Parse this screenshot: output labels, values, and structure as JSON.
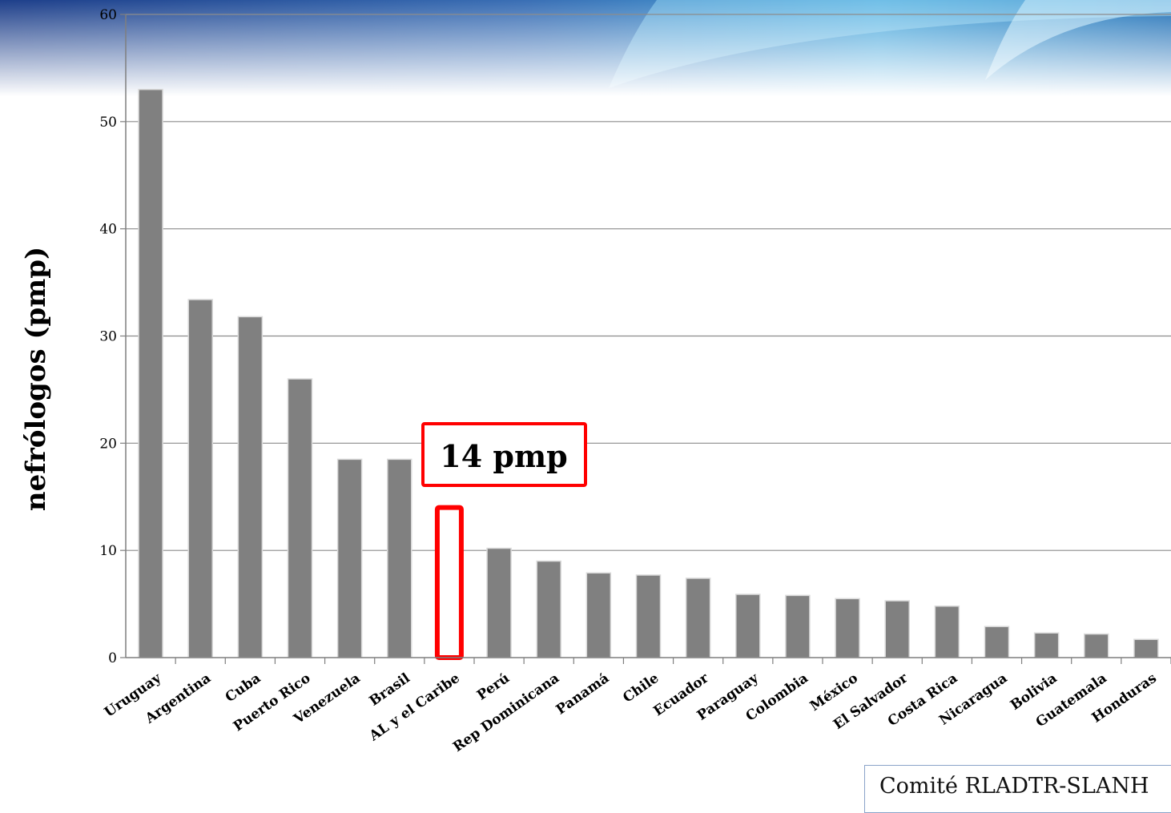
{
  "chart_data": {
    "type": "bar",
    "ylabel": "nefrólogos (pmp)",
    "xlabel": "",
    "ylim": [
      0,
      60
    ],
    "yticks": [
      0,
      10,
      20,
      30,
      40,
      50,
      60
    ],
    "grid": true,
    "categories": [
      "Uruguay",
      "Argentina",
      "Cuba",
      "Puerto Rico",
      "Venezuela",
      "Brasil",
      "AL y el Caribe",
      "Perú",
      "Rep Dominicana",
      "Panamá",
      "Chile",
      "Ecuador",
      "Paraguay",
      "Colombia",
      "México",
      "El Salvador",
      "Costa Rica",
      "Nicaragua",
      "Bolivia",
      "Guatemala",
      "Honduras"
    ],
    "values": [
      53,
      33.4,
      31.8,
      26,
      18.5,
      18.5,
      14,
      10.2,
      9,
      7.9,
      7.7,
      7.4,
      5.9,
      5.8,
      5.5,
      5.3,
      4.8,
      2.9,
      2.3,
      2.2,
      1.7
    ],
    "bar_color": "#808080",
    "highlight": {
      "category": "AL y el Caribe",
      "color": "#ff0000"
    },
    "annotations": [
      {
        "text": "14 pmp",
        "color": "#ff0000"
      }
    ]
  },
  "source_note": "Comité RLADTR-SLANH",
  "colors": {
    "banner_dark": "#1e3f8a",
    "banner_light": "#4aa8dc"
  }
}
